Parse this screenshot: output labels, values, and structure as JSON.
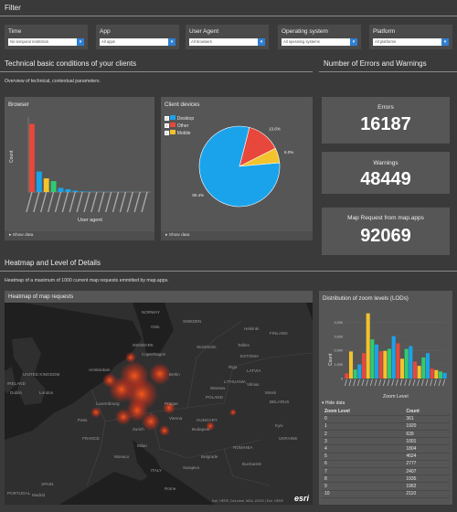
{
  "filter": {
    "title": "Filter",
    "items": [
      {
        "label": "Time",
        "value": "No temporal restriction"
      },
      {
        "label": "App",
        "value": "All apps"
      },
      {
        "label": "User Agent",
        "value": "All browsers"
      },
      {
        "label": "Operating system",
        "value": "All operating systems"
      },
      {
        "label": "Platform",
        "value": "All platforms"
      }
    ]
  },
  "technical": {
    "title": "Technical basic conditions of your clients",
    "subtitle": "Overview of technical, contextual parameters."
  },
  "errors_section": {
    "title": "Number of Errors and Warnings"
  },
  "browser_panel": {
    "title": "Browser",
    "ylabel": "Count",
    "xlabel": "User agent",
    "show_data": "Show data"
  },
  "devices_panel": {
    "title": "Client devices",
    "legend": [
      {
        "label": "Desktop",
        "color": "#1aa3ea"
      },
      {
        "label": "Other",
        "color": "#e8473c"
      },
      {
        "label": "Mobile",
        "color": "#f2c32c"
      }
    ],
    "show_data": "Show data"
  },
  "kpis": {
    "errors": {
      "title": "Errors",
      "value": "16187"
    },
    "warnings": {
      "title": "Warnings",
      "value": "48449"
    },
    "requests": {
      "title": "Map Request from map.apps",
      "value": "92069"
    }
  },
  "heatmap_section": {
    "title": "Heatmap and Level of Details",
    "subtitle": "Heatmap of a maximum of 1000 current map requests emmitted by map.apps."
  },
  "map_panel": {
    "title": "Heatmap of map requests",
    "labels": {
      "norway": "NORWAY",
      "sweden": "SWEDEN",
      "finland": "FINLAND",
      "estonia": "ESTONIA",
      "latvia": "LATVIA",
      "lithuania": "LITHUANIA",
      "belarus": "BELARUS",
      "ukraine": "UKRAINE",
      "poland": "POLAND",
      "denmark": "DENMARK",
      "ireland": "IRELAND",
      "uk": "UNITED KINGDOM",
      "france": "FRANCE",
      "spain": "SPAIN",
      "italy": "ITALY",
      "portugal": "PORTUGAL",
      "romania": "ROMANIA",
      "hungary": "HUNGARY",
      "london": "London",
      "paris": "Paris",
      "berlin": "Berlin",
      "warsaw": "Warsaw",
      "prague": "Prague",
      "vienna": "Vienna",
      "budapest": "Budapest",
      "stockholm": "Stockholm",
      "oslo": "Oslo",
      "amsterdam": "Amsterdam",
      "copenhagen": "Copenhagen",
      "milan": "Milan",
      "rome": "Rome",
      "monaco": "Monaco",
      "madrid": "Madrid",
      "bucharest": "Bucharest",
      "kyiv": "Kyiv",
      "minsk": "Minsk",
      "riga": "Riga",
      "vilnius": "Vilnius",
      "helsinki": "Helsinki",
      "tallinn": "Tallinn",
      "dublin": "Dublin",
      "luxembourg": "Luxembourg",
      "zurich": "Zurich",
      "belgrade": "Belgrade",
      "sarajevo": "Sarajevo"
    },
    "attribution": "Esri, HERE, DeLorme, NGA, USGS | Esri, HERE",
    "logo": "esri"
  },
  "zoom_panel": {
    "title": "Distribution of zoom levels (LODs)",
    "ylabel": "Count",
    "xlabel": "Zoom Level",
    "hide_data": "Hide data",
    "columns": [
      "Zoom Level",
      "Count"
    ],
    "rows": [
      [
        "0",
        "361"
      ],
      [
        "1",
        "1920"
      ],
      [
        "2",
        "639"
      ],
      [
        "3",
        "1001"
      ],
      [
        "4",
        "1804"
      ],
      [
        "5",
        "4624"
      ],
      [
        "6",
        "2777"
      ],
      [
        "7",
        "2407"
      ],
      [
        "8",
        "1935"
      ],
      [
        "9",
        "1962"
      ],
      [
        "10",
        "2110"
      ]
    ]
  },
  "chart_data": [
    {
      "type": "bar",
      "title": "Browser",
      "ylabel": "Count",
      "xlabel": "User agent",
      "series": [
        {
          "color": "#e8473c",
          "values": [
            1000,
            0,
            0,
            0,
            0,
            0,
            0,
            0,
            0,
            0,
            0,
            0,
            0,
            0,
            0,
            0,
            0
          ]
        },
        {
          "color": "#1aa3ea",
          "values": [
            0,
            300,
            0,
            0,
            0,
            0,
            0,
            0,
            0,
            0,
            0,
            0,
            0,
            0,
            0,
            0,
            0
          ]
        },
        {
          "color": "#f2c32c",
          "values": [
            0,
            0,
            200,
            0,
            0,
            0,
            0,
            0,
            0,
            0,
            0,
            0,
            0,
            0,
            0,
            0,
            0
          ]
        },
        {
          "color": "#2ecc71",
          "values": [
            0,
            0,
            0,
            160,
            0,
            0,
            0,
            0,
            0,
            0,
            0,
            0,
            0,
            0,
            0,
            0,
            0
          ]
        },
        {
          "color": "#1aa3ea",
          "values": [
            0,
            0,
            0,
            0,
            60,
            40,
            20,
            10,
            6,
            4,
            3,
            2,
            2,
            1,
            1,
            1,
            1
          ]
        }
      ],
      "ylim": [
        0,
        1100
      ]
    },
    {
      "type": "pie",
      "title": "Client devices",
      "slices": [
        {
          "label": "Desktop",
          "value": 80.4,
          "color": "#1aa3ea"
        },
        {
          "label": "Other",
          "value": 13.6,
          "color": "#e8473c"
        },
        {
          "label": "Mobile",
          "value": 6.0,
          "color": "#f2c32c"
        }
      ],
      "slice_labels": [
        "80.4%",
        "13.6%",
        "6.0%"
      ]
    },
    {
      "type": "bar",
      "title": "Distribution of zoom levels (LODs)",
      "ylabel": "Count",
      "xlabel": "Zoom Level",
      "yticks": [
        "0",
        "1,000",
        "2,000",
        "3,000",
        "4,000"
      ],
      "ylim": [
        0,
        4800
      ],
      "values": [
        361,
        1920,
        639,
        1001,
        1804,
        4624,
        2777,
        2407,
        1935,
        1962,
        2110,
        3000,
        2500,
        1400,
        2100,
        2300,
        1200,
        900,
        1500,
        1800,
        700,
        600,
        500,
        400
      ],
      "colors": [
        "#e8473c",
        "#f2c32c",
        "#2ecc71",
        "#1aa3ea"
      ]
    }
  ]
}
